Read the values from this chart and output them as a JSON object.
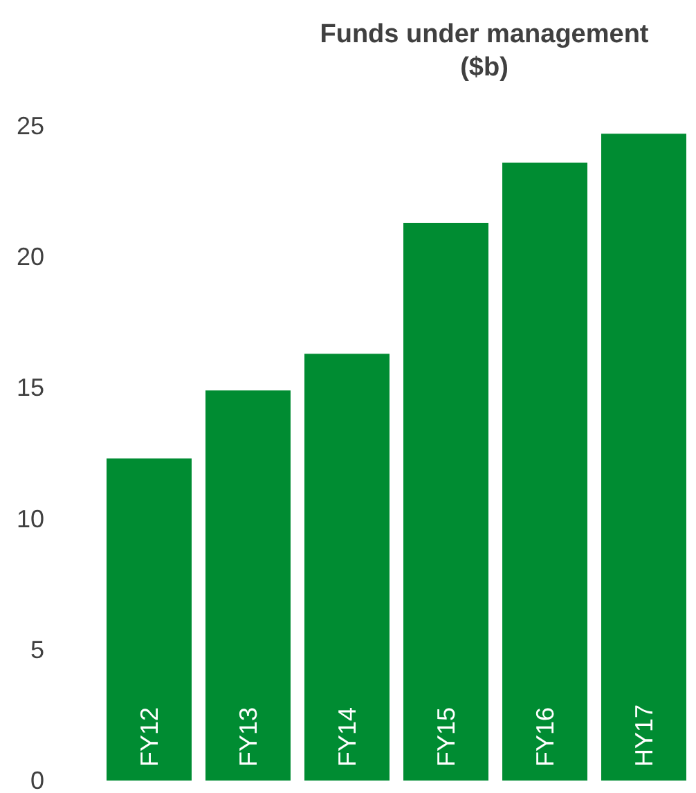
{
  "chart_data": {
    "type": "bar",
    "title": "Funds under management\n($b)",
    "categories": [
      "FY12",
      "FY13",
      "FY14",
      "FY15",
      "FY16",
      "HY17"
    ],
    "values": [
      12.3,
      14.9,
      16.3,
      21.3,
      23.6,
      24.7
    ],
    "color": "#008c32",
    "ylim": [
      0,
      25
    ],
    "yticks": [
      0,
      5,
      10,
      15,
      20,
      25
    ],
    "grid": false
  }
}
